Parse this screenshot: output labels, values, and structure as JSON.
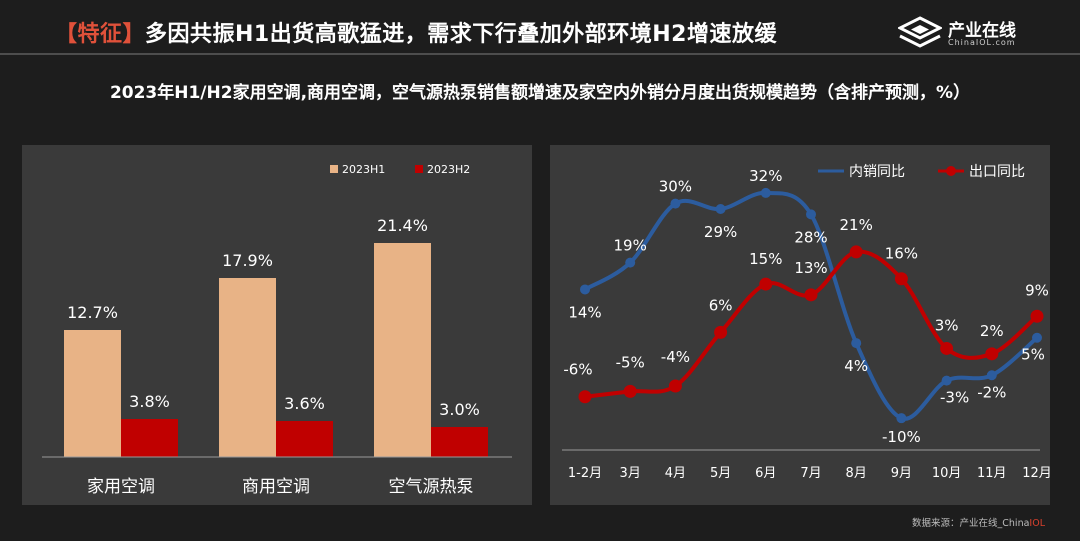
{
  "header": {
    "tag": "【特征】",
    "title": "多因共振H1出货高歌猛进，需求下行叠加外部环境H2增速放缓"
  },
  "brand": {
    "name": "产业在线",
    "url": "ChinaIOL.com",
    "icon": "brand-logo-icon"
  },
  "subtitle": "2023年H1/H2家用空调,商用空调，空气源热泵销售额增速及家空内外销分月度出货规模趋势（含排产预测，%）",
  "source": {
    "prefix": "数据来源：",
    "text": "产业在线_China",
    "suffix": "IOL"
  },
  "colors": {
    "h1": "#e8b386",
    "h2": "#c00000",
    "domestic": "#2c5c9e",
    "export": "#c00000"
  },
  "chart_data": [
    {
      "type": "bar",
      "categories": [
        "家用空调",
        "商用空调",
        "空气源热泵"
      ],
      "series": [
        {
          "name": "2023H1",
          "values": [
            12.7,
            17.9,
            21.4
          ],
          "labels": [
            "12.7%",
            "17.9%",
            "21.4%"
          ]
        },
        {
          "name": "2023H2",
          "values": [
            3.8,
            3.6,
            3.0
          ],
          "labels": [
            "3.8%",
            "3.6%",
            "3.0%"
          ]
        }
      ],
      "legend": "top-right",
      "ylim": [
        0,
        25
      ],
      "grid": false
    },
    {
      "type": "line",
      "categories": [
        "1-2月",
        "3月",
        "4月",
        "5月",
        "6月",
        "7月",
        "8月",
        "9月",
        "10月",
        "11月",
        "12月"
      ],
      "series": [
        {
          "name": "内销同比",
          "values": [
            14,
            19,
            30,
            29,
            32,
            28,
            4,
            -10,
            -3,
            -2,
            5
          ],
          "labels": [
            "14%",
            "19%",
            "30%",
            "29%",
            "32%",
            "28%",
            "4%",
            "-10%",
            "-3%",
            "-2%",
            "5%"
          ]
        },
        {
          "name": "出口同比",
          "values": [
            -6,
            -5,
            -4,
            6,
            15,
            13,
            21,
            16,
            3,
            2,
            9
          ],
          "labels": [
            "-6%",
            "-5%",
            "-4%",
            "6%",
            "15%",
            "13%",
            "21%",
            "16%",
            "3%",
            "2%",
            "9%"
          ]
        }
      ],
      "legend": "top",
      "ylim": [
        -15,
        40
      ],
      "grid": false
    }
  ]
}
